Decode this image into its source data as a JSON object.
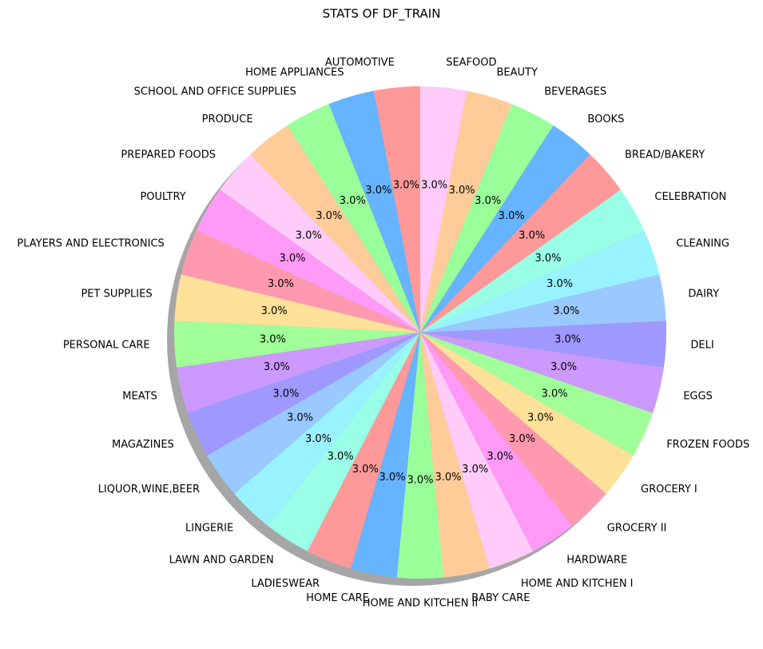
{
  "chart_data": {
    "type": "pie",
    "title": "STATS OF DF_TRAIN",
    "value_format": "3.0%",
    "categories": [
      "AUTOMOTIVE",
      "HOME APPLIANCES",
      "SCHOOL AND OFFICE SUPPLIES",
      "PRODUCE",
      "PREPARED FOODS",
      "POULTRY",
      "PLAYERS AND ELECTRONICS",
      "PET SUPPLIES",
      "PERSONAL CARE",
      "MEATS",
      "MAGAZINES",
      "LIQUOR,WINE,BEER",
      "LINGERIE",
      "LAWN AND GARDEN",
      "LADIESWEAR",
      "HOME CARE",
      "HOME AND KITCHEN II",
      "BABY CARE",
      "HOME AND KITCHEN I",
      "HARDWARE",
      "GROCERY II",
      "GROCERY I",
      "FROZEN FOODS",
      "EGGS",
      "DELI",
      "DAIRY",
      "CLEANING",
      "CELEBRATION",
      "BREAD/BAKERY",
      "BOOKS",
      "BEVERAGES",
      "BEAUTY",
      "SEAFOOD"
    ],
    "values": [
      3.0,
      3.0,
      3.0,
      3.0,
      3.0,
      3.0,
      3.0,
      3.0,
      3.0,
      3.0,
      3.0,
      3.0,
      3.0,
      3.0,
      3.0,
      3.0,
      3.0,
      3.0,
      3.0,
      3.0,
      3.0,
      3.0,
      3.0,
      3.0,
      3.0,
      3.0,
      3.0,
      3.0,
      3.0,
      3.0,
      3.0,
      3.0,
      3.0
    ],
    "colors": [
      "#ff9999",
      "#66b3ff",
      "#99ff99",
      "#ffcc99",
      "#ffccf9",
      "#ff99f8",
      "#ff99af",
      "#ffe199",
      "#a0ff99",
      "#cc99ff",
      "#9f99ff",
      "#99c9ff",
      "#99f3ff",
      "#99ffe6"
    ],
    "start_angle_deg": 90,
    "direction": "counterclockwise",
    "shadow": true,
    "legend": "none"
  }
}
